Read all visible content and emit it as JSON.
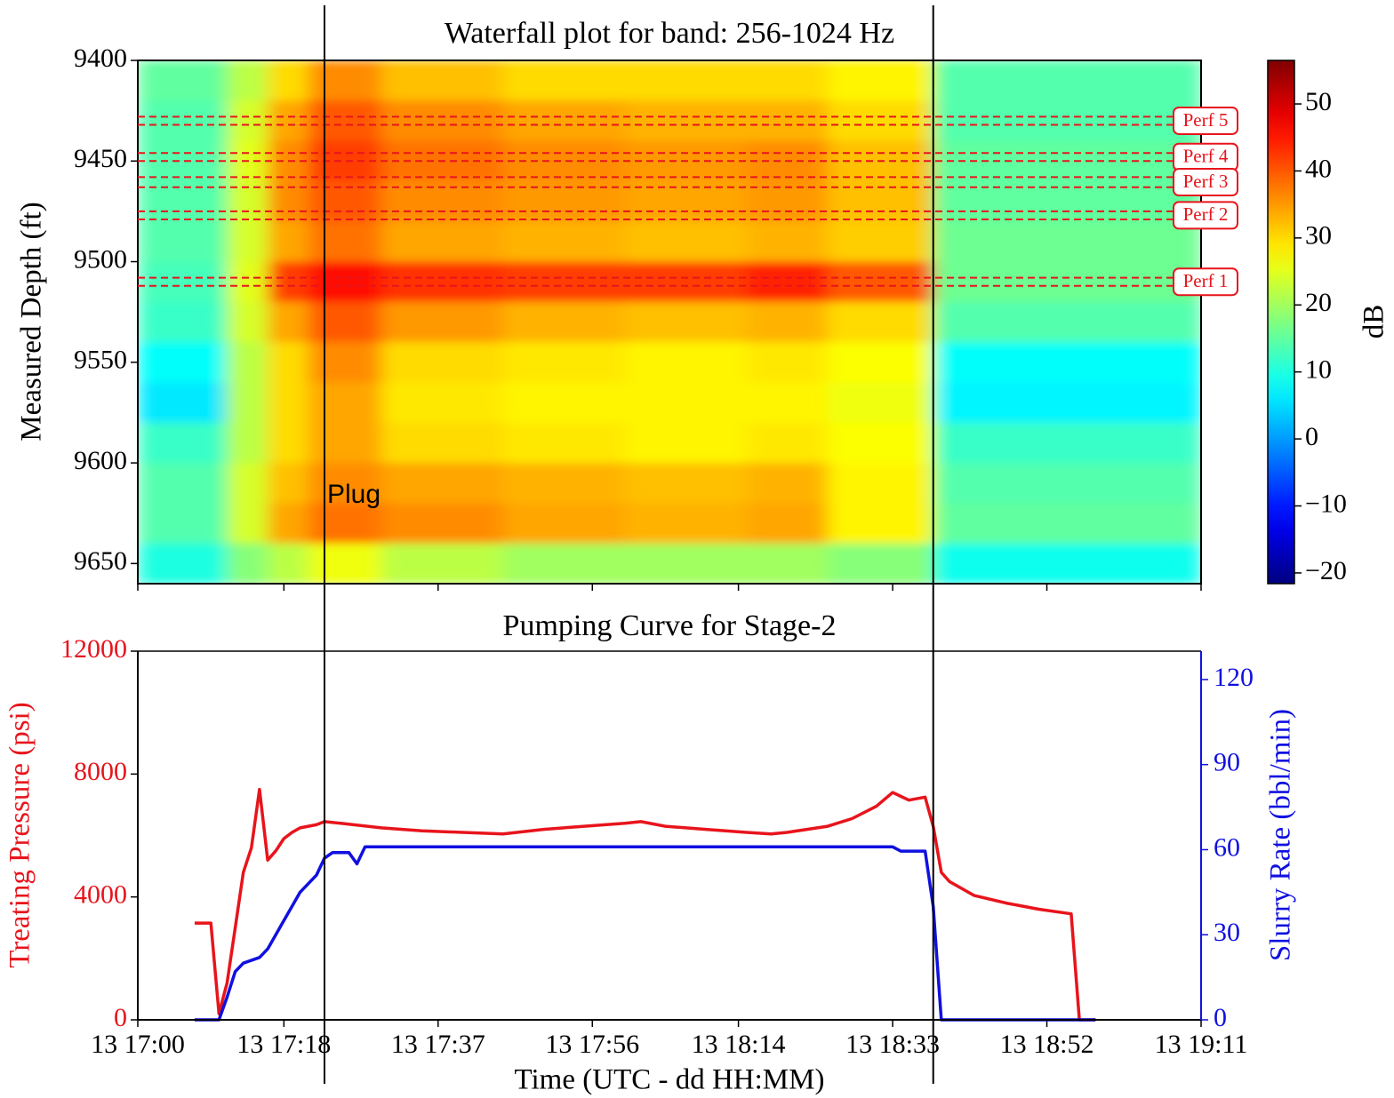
{
  "chart_data": [
    {
      "type": "heatmap",
      "title": "Waterfall plot for band: 256-1024 Hz",
      "ylabel": "Measured Depth (ft)",
      "colormap": "jet",
      "xlim": [
        "13 17:00",
        "13 19:11"
      ],
      "x_edges": [
        "13 17:00",
        "13 17:11",
        "13 17:16",
        "13 17:21",
        "13 17:30",
        "13 17:45",
        "13 18:00",
        "13 18:15",
        "13 18:25",
        "13 18:38",
        "13 19:11"
      ],
      "y_edges": [
        9400,
        9420,
        9440,
        9460,
        9480,
        9500,
        9520,
        9540,
        9560,
        9580,
        9600,
        9620,
        9640,
        9660
      ],
      "ylim": [
        9660,
        9400
      ],
      "yticks": [
        9400,
        9450,
        9500,
        9550,
        9600,
        9650
      ],
      "values": [
        [
          15,
          22,
          30,
          36,
          32,
          30,
          30,
          30,
          28,
          14
        ],
        [
          14,
          24,
          34,
          40,
          36,
          34,
          33,
          33,
          30,
          14
        ],
        [
          14,
          25,
          36,
          42,
          38,
          36,
          35,
          36,
          32,
          15
        ],
        [
          14,
          24,
          36,
          40,
          36,
          35,
          34,
          35,
          32,
          15
        ],
        [
          14,
          24,
          34,
          38,
          34,
          33,
          32,
          33,
          31,
          16
        ],
        [
          13,
          25,
          42,
          46,
          43,
          42,
          42,
          44,
          40,
          16
        ],
        [
          12,
          24,
          34,
          40,
          35,
          33,
          32,
          33,
          30,
          14
        ],
        [
          8,
          22,
          30,
          36,
          30,
          29,
          28,
          29,
          27,
          8
        ],
        [
          6,
          22,
          30,
          34,
          29,
          28,
          28,
          28,
          26,
          7
        ],
        [
          12,
          22,
          30,
          34,
          30,
          29,
          28,
          29,
          27,
          12
        ],
        [
          14,
          24,
          32,
          36,
          34,
          33,
          32,
          33,
          28,
          14
        ],
        [
          14,
          24,
          34,
          38,
          36,
          34,
          33,
          34,
          28,
          15
        ],
        [
          10,
          18,
          22,
          26,
          22,
          20,
          20,
          20,
          18,
          9
        ]
      ],
      "colorbar": {
        "label": "dB",
        "lim": [
          -21.6,
          56.5
        ],
        "ticks": [
          {
            "value": -20,
            "label": "−20"
          },
          {
            "value": -10,
            "label": "−10"
          },
          0,
          10,
          20,
          30,
          40,
          50
        ]
      },
      "perf_color": "#e8141c",
      "perfs": [
        {
          "label": "Perf 5",
          "top": 9428,
          "bottom": 9432
        },
        {
          "label": "Perf 4",
          "top": 9446,
          "bottom": 9450
        },
        {
          "label": "Perf 3",
          "top": 9458,
          "bottom": 9463
        },
        {
          "label": "Perf 2",
          "top": 9475,
          "bottom": 9479
        },
        {
          "label": "Perf 1",
          "top": 9508,
          "bottom": 9512
        }
      ],
      "annotations": [
        "Plug"
      ]
    },
    {
      "type": "line",
      "title": "Pumping Curve for Stage-2",
      "xlabel": "Time (UTC - dd HH:MM)",
      "ylabel": "Treating Pressure (psi)",
      "y2label": "Slurry Rate (bbl/min)",
      "xlim": [
        "13 17:00",
        "13 19:11"
      ],
      "xticks": [
        "13 17:00",
        "13 17:18",
        "13 17:37",
        "13 17:56",
        "13 18:14",
        "13 18:33",
        "13 18:52",
        "13 19:11"
      ],
      "ylim": [
        0,
        12000
      ],
      "yticks": [
        0,
        4000,
        8000,
        12000
      ],
      "y2lim": [
        0,
        130
      ],
      "y2ticks": [
        0,
        30,
        60,
        90,
        120
      ],
      "vlines": [
        "13 17:23",
        "13 18:38"
      ],
      "series": [
        {
          "color": "#e8141c",
          "x": [
            "13 17:07",
            "13 17:09",
            "13 17:10",
            "13 17:11",
            "13 17:12",
            "13 17:13",
            "13 17:14",
            "13 17:15",
            "13 17:16",
            "13 17:17",
            "13 17:18",
            "13 17:19",
            "13 17:20",
            "13 17:22",
            "13 17:23",
            "13 17:25",
            "13 17:30",
            "13 17:35",
            "13 17:40",
            "13 17:45",
            "13 17:50",
            "13 17:55",
            "13 18:00",
            "13 18:02",
            "13 18:05",
            "13 18:10",
            "13 18:15",
            "13 18:18",
            "13 18:20",
            "13 18:25",
            "13 18:28",
            "13 18:31",
            "13 18:33",
            "13 18:35",
            "13 18:37",
            "13 18:38",
            "13 18:39",
            "13 18:40",
            "13 18:43",
            "13 18:47",
            "13 18:51",
            "13 18:55",
            "13 18:56",
            "13 18:58"
          ],
          "values": [
            3150,
            3150,
            200,
            1200,
            3000,
            4800,
            5600,
            7500,
            5200,
            5500,
            5900,
            6100,
            6250,
            6350,
            6450,
            6400,
            6250,
            6150,
            6100,
            6050,
            6200,
            6300,
            6400,
            6450,
            6300,
            6200,
            6100,
            6050,
            6100,
            6300,
            6550,
            6950,
            7400,
            7150,
            7250,
            6300,
            4800,
            4500,
            4050,
            3800,
            3600,
            3450,
            0,
            0
          ]
        },
        {
          "color": "#1010e0",
          "axis": "y2",
          "x": [
            "13 17:07",
            "13 17:10",
            "13 17:11",
            "13 17:12",
            "13 17:13",
            "13 17:15",
            "13 17:16",
            "13 17:18",
            "13 17:20",
            "13 17:22",
            "13 17:23",
            "13 17:24",
            "13 17:26",
            "13 17:27",
            "13 17:28",
            "13 17:40",
            "13 18:00",
            "13 18:20",
            "13 18:33",
            "13 18:34",
            "13 18:37",
            "13 18:38",
            "13 18:39",
            "13 18:58"
          ],
          "values": [
            0,
            0,
            8,
            17,
            20,
            22,
            25,
            35,
            45,
            51,
            57,
            59,
            59,
            55,
            61,
            61,
            61,
            61,
            61,
            59.5,
            59.5,
            40,
            0,
            0
          ]
        }
      ]
    }
  ]
}
